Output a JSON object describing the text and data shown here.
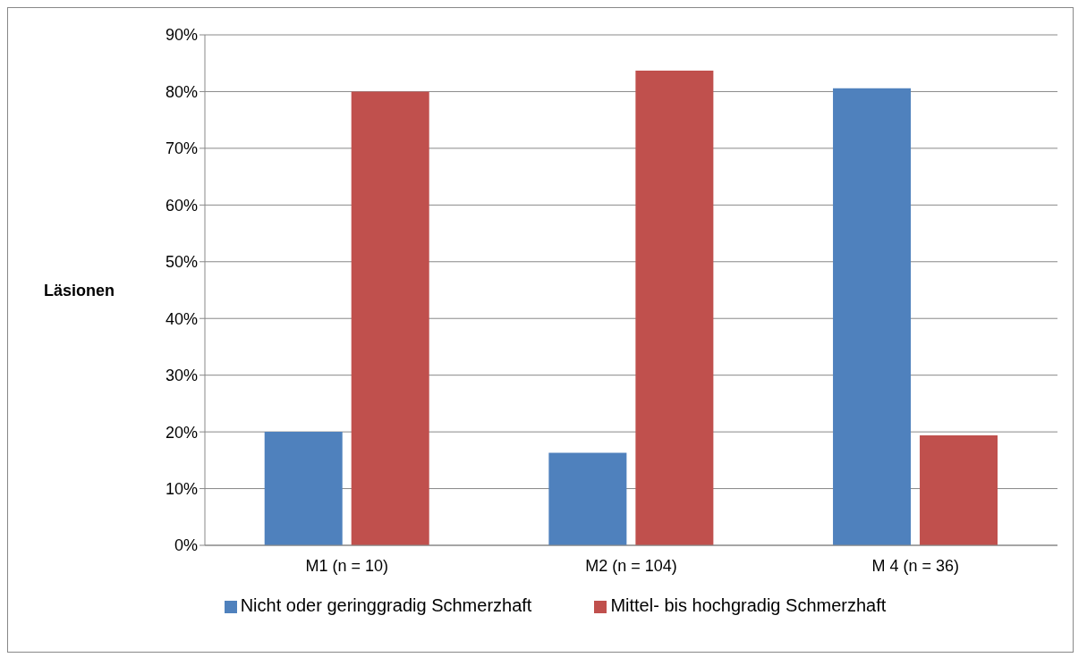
{
  "chart_data": {
    "type": "bar",
    "ylabel": "Läsionen",
    "categories": [
      "M1 (n = 10)",
      "M2 (n = 104)",
      "M 4 (n = 36)"
    ],
    "series": [
      {
        "name": "Nicht oder geringgradig Schmerzhaft",
        "color": "#4f81bd",
        "values": [
          20,
          16.3,
          80.6
        ]
      },
      {
        "name": "Mittel- bis hochgradig Schmerzhaft",
        "color": "#c0504d",
        "values": [
          80,
          83.7,
          19.4
        ]
      }
    ],
    "ylim": [
      0,
      90
    ],
    "yticks": [
      {
        "value": 0,
        "label": "0%"
      },
      {
        "value": 10,
        "label": "10%"
      },
      {
        "value": 20,
        "label": "20%"
      },
      {
        "value": 30,
        "label": "30%"
      },
      {
        "value": 40,
        "label": "40%"
      },
      {
        "value": 50,
        "label": "50%"
      },
      {
        "value": 60,
        "label": "60%"
      },
      {
        "value": 70,
        "label": "70%"
      },
      {
        "value": 80,
        "label": "80%"
      },
      {
        "value": 90,
        "label": "90%"
      }
    ],
    "grid": "y",
    "legend": "bottom"
  }
}
